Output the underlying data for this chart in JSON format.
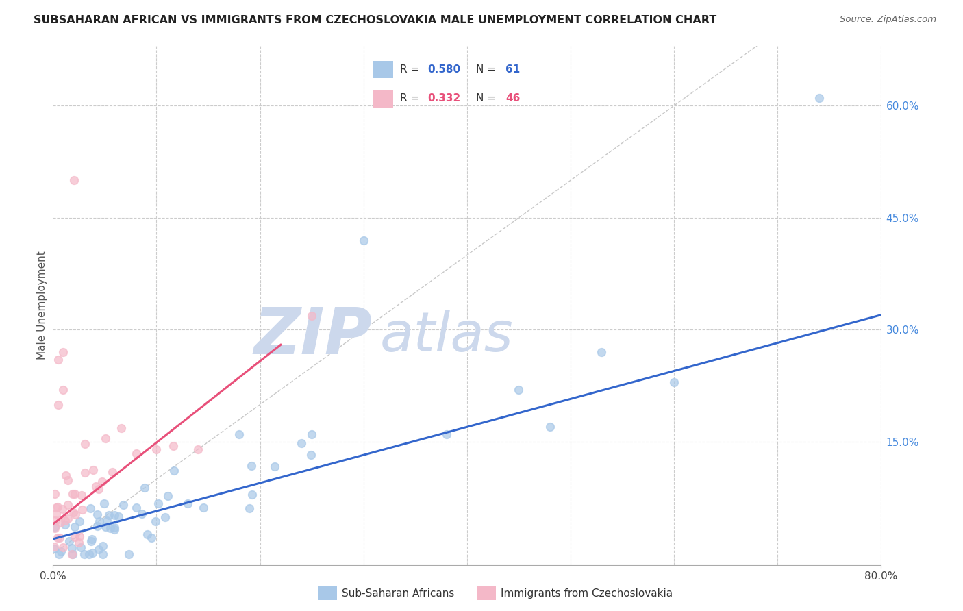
{
  "title": "SUBSAHARAN AFRICAN VS IMMIGRANTS FROM CZECHOSLOVAKIA MALE UNEMPLOYMENT CORRELATION CHART",
  "source": "Source: ZipAtlas.com",
  "ylabel": "Male Unemployment",
  "xlim": [
    0.0,
    0.8
  ],
  "ylim": [
    -0.015,
    0.68
  ],
  "ytick_vals": [
    0.15,
    0.3,
    0.45,
    0.6
  ],
  "ytick_labels": [
    "15.0%",
    "30.0%",
    "45.0%",
    "60.0%"
  ],
  "xtick_vals": [
    0.0,
    0.8
  ],
  "xtick_labels": [
    "0.0%",
    "80.0%"
  ],
  "blue_R": 0.58,
  "blue_N": 61,
  "pink_R": 0.332,
  "pink_N": 46,
  "blue_color": "#a8c8e8",
  "blue_line_color": "#3366cc",
  "pink_color": "#f4b8c8",
  "pink_line_color": "#e8507a",
  "blue_line_x": [
    0.0,
    0.8
  ],
  "blue_line_y": [
    0.02,
    0.32
  ],
  "pink_line_x": [
    0.0,
    0.22
  ],
  "pink_line_y": [
    0.04,
    0.28
  ],
  "watermark": "ZIPatlas",
  "watermark_color": "#ccd8ec",
  "background_color": "#ffffff",
  "grid_color": "#cccccc",
  "diagonal_color": "#c8c8c8"
}
